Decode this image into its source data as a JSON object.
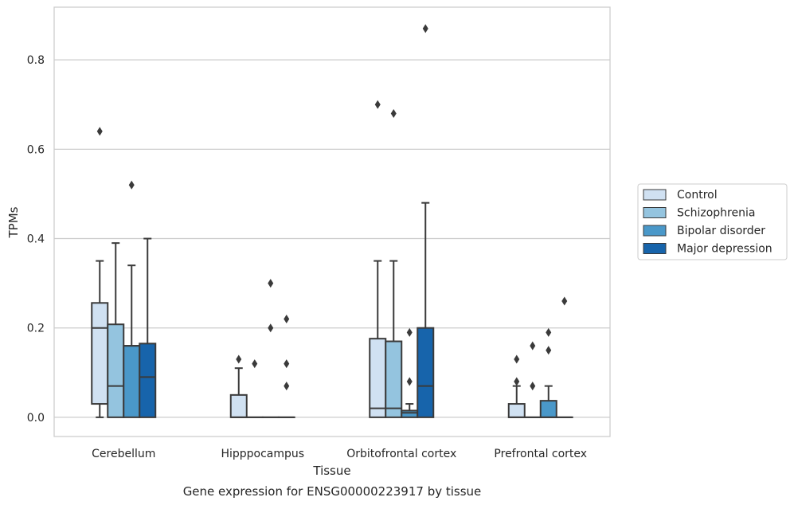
{
  "caption": "Gene expression for ENSG00000223917 by tissue",
  "chart_data": {
    "type": "box",
    "title": "",
    "xlabel": "Tissue",
    "ylabel": "TPMs",
    "ylim": [
      -0.043,
      0.918
    ],
    "yticks": [
      0.0,
      0.2,
      0.4,
      0.6,
      0.8
    ],
    "ytick_labels": [
      "0.0",
      "0.2",
      "0.4",
      "0.6",
      "0.8"
    ],
    "grid": "horizontal",
    "legend_position": "right",
    "categories": [
      "Cerebellum",
      "Hipppocampus",
      "Orbitofrontal cortex",
      "Prefrontal cortex"
    ],
    "series": [
      {
        "name": "Control",
        "color": "#d0e1f2",
        "boxes": [
          {
            "whislo": 0.0,
            "q1": 0.03,
            "med": 0.2,
            "q3": 0.256,
            "whishi": 0.35,
            "fliers": [
              0.64
            ]
          },
          {
            "whislo": 0.0,
            "q1": 0.0,
            "med": 0.0,
            "q3": 0.05,
            "whishi": 0.11,
            "fliers": [
              0.13
            ]
          },
          {
            "whislo": 0.0,
            "q1": 0.0,
            "med": 0.02,
            "q3": 0.176,
            "whishi": 0.35,
            "fliers": [
              0.7
            ]
          },
          {
            "whislo": 0.0,
            "q1": 0.0,
            "med": 0.0,
            "q3": 0.03,
            "whishi": 0.07,
            "fliers": [
              0.08,
              0.13
            ]
          }
        ]
      },
      {
        "name": "Schizophrenia",
        "color": "#94c4df",
        "boxes": [
          {
            "whislo": 0.0,
            "q1": 0.0,
            "med": 0.07,
            "q3": 0.208,
            "whishi": 0.39,
            "fliers": []
          },
          {
            "whislo": 0.0,
            "q1": 0.0,
            "med": 0.0,
            "q3": 0.0,
            "whishi": 0.0,
            "fliers": [
              0.12
            ]
          },
          {
            "whislo": 0.0,
            "q1": 0.0,
            "med": 0.02,
            "q3": 0.17,
            "whishi": 0.35,
            "fliers": [
              0.68
            ]
          },
          {
            "whislo": 0.0,
            "q1": 0.0,
            "med": 0.0,
            "q3": 0.0,
            "whishi": 0.0,
            "fliers": [
              0.07,
              0.16
            ]
          }
        ]
      },
      {
        "name": "Bipolar disorder",
        "color": "#4a98c9",
        "boxes": [
          {
            "whislo": 0.0,
            "q1": 0.0,
            "med": 0.16,
            "q3": 0.16,
            "whishi": 0.34,
            "fliers": [
              0.52
            ]
          },
          {
            "whislo": 0.0,
            "q1": 0.0,
            "med": 0.0,
            "q3": 0.0,
            "whishi": 0.0,
            "fliers": [
              0.2,
              0.3
            ]
          },
          {
            "whislo": 0.0,
            "q1": 0.0,
            "med": 0.01,
            "q3": 0.015,
            "whishi": 0.03,
            "fliers": [
              0.08,
              0.19
            ]
          },
          {
            "whislo": 0.0,
            "q1": 0.0,
            "med": 0.0,
            "q3": 0.037,
            "whishi": 0.07,
            "fliers": [
              0.15,
              0.19
            ]
          }
        ]
      },
      {
        "name": "Major depression",
        "color": "#1764ab",
        "boxes": [
          {
            "whislo": 0.0,
            "q1": 0.0,
            "med": 0.09,
            "q3": 0.165,
            "whishi": 0.4,
            "fliers": []
          },
          {
            "whislo": 0.0,
            "q1": 0.0,
            "med": 0.0,
            "q3": 0.0,
            "whishi": 0.0,
            "fliers": [
              0.07,
              0.12,
              0.22
            ]
          },
          {
            "whislo": 0.0,
            "q1": 0.0,
            "med": 0.07,
            "q3": 0.2,
            "whishi": 0.48,
            "fliers": [
              0.87
            ]
          },
          {
            "whislo": 0.0,
            "q1": 0.0,
            "med": 0.0,
            "q3": 0.0,
            "whishi": 0.0,
            "fliers": [
              0.26
            ]
          }
        ]
      }
    ]
  }
}
